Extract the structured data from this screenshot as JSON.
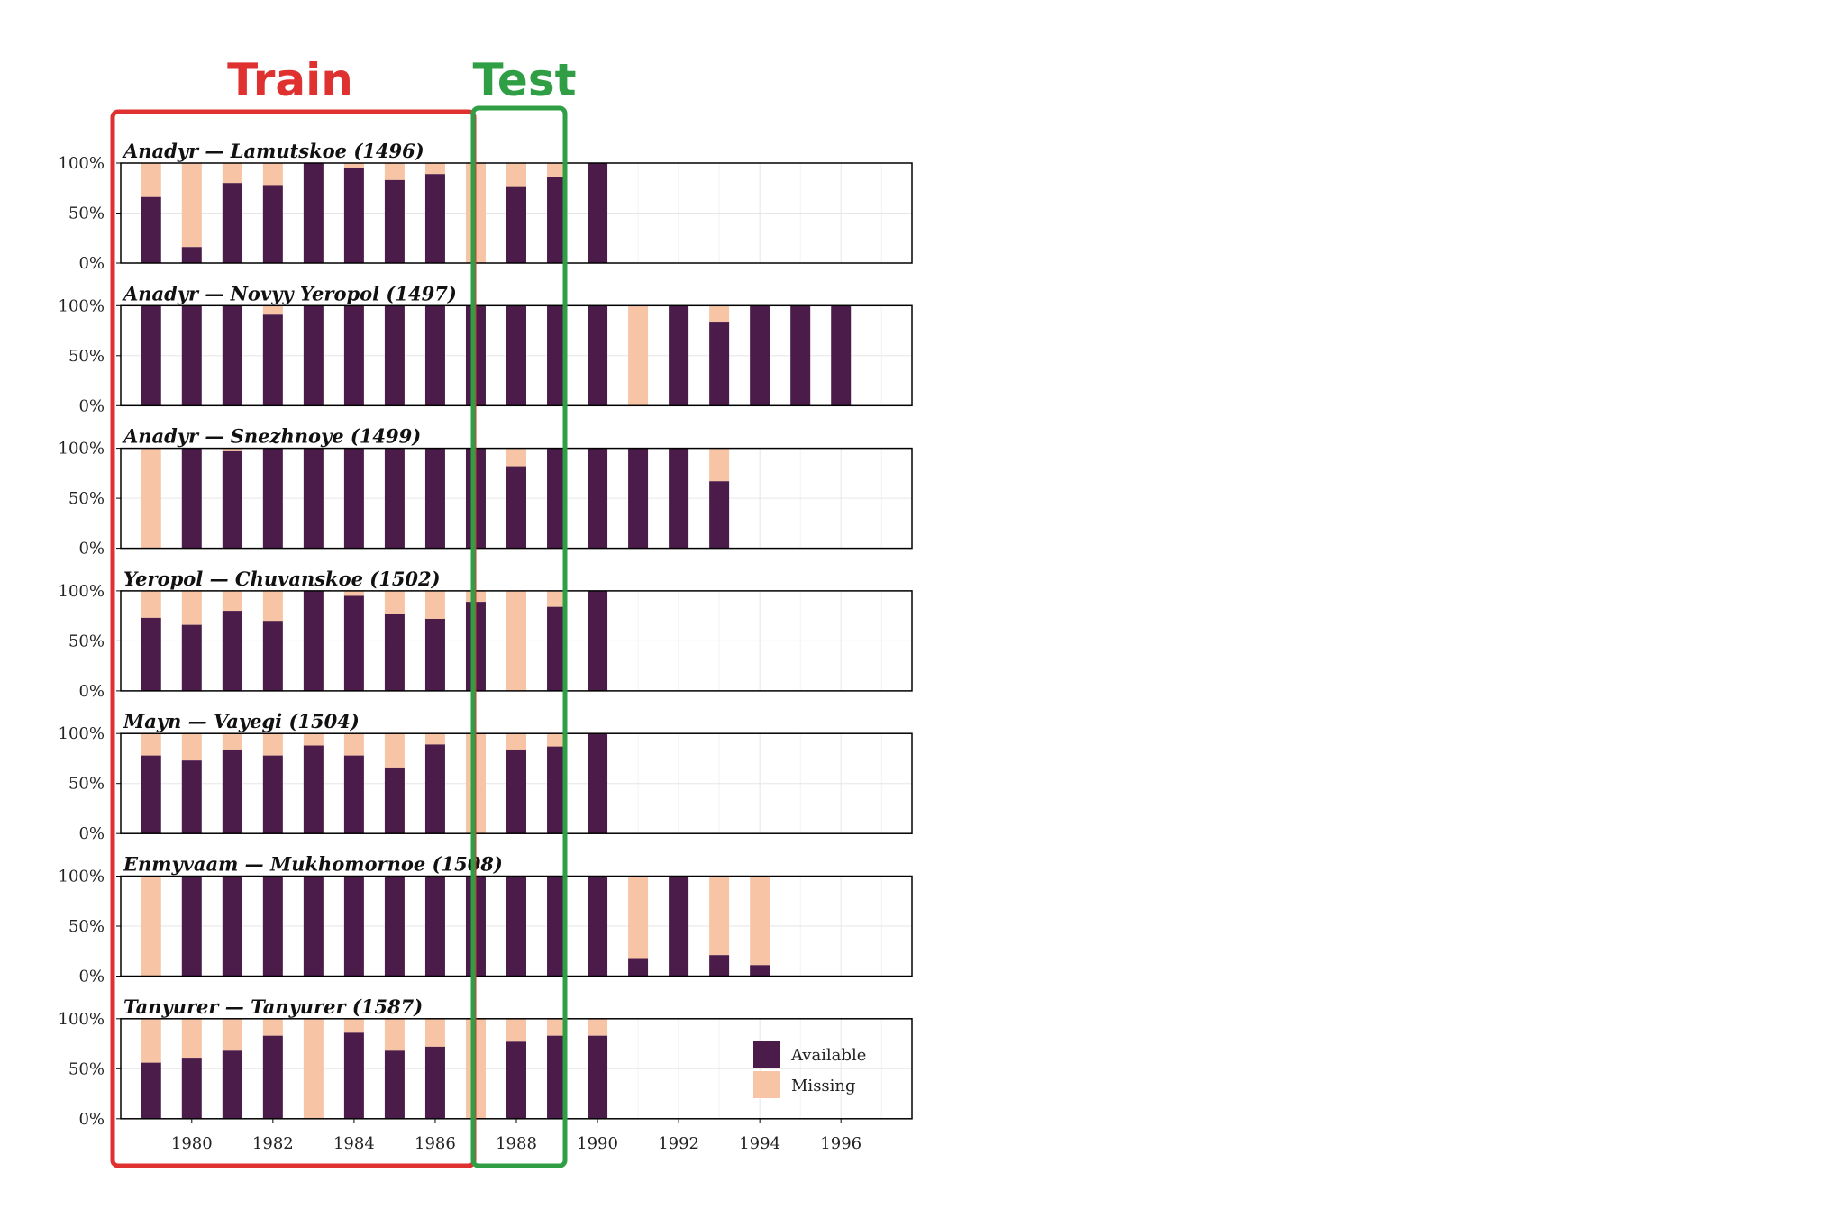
{
  "annotations": {
    "train_label": "Train",
    "test_label": "Test"
  },
  "colors": {
    "available": "#4b1c4a",
    "missing": "#f7c5a5",
    "train": "#e03131",
    "test": "#2f9e44",
    "grid": "#e6e6e6",
    "frame": "#000000"
  },
  "legend": {
    "available": "Available",
    "missing": "Missing",
    "position": "bottom-right of last panel"
  },
  "chart_data": {
    "type": "bar",
    "stacked": true,
    "grid": true,
    "x_ticks": [
      "1980",
      "1982",
      "1984",
      "1986",
      "1988",
      "1990",
      "1992",
      "1994",
      "1996"
    ],
    "x_tick_values": [
      1980,
      1982,
      1984,
      1986,
      1988,
      1990,
      1992,
      1994,
      1996
    ],
    "xlim": [
      1978,
      1997
    ],
    "y_ticks": [
      "0%",
      "50%",
      "100%"
    ],
    "ylim": [
      0,
      100
    ],
    "unit": "%",
    "panels": [
      {
        "title": "Anadyr — Lamutskoe (1496)",
        "years": [
          1979,
          1980,
          1981,
          1982,
          1983,
          1984,
          1985,
          1986,
          1987,
          1988,
          1989,
          1990
        ],
        "available": [
          66,
          16,
          80,
          78,
          100,
          95,
          83,
          89,
          0,
          76,
          86,
          100
        ]
      },
      {
        "title": "Anadyr — Novyy Yeropol (1497)",
        "years": [
          1979,
          1980,
          1981,
          1982,
          1983,
          1984,
          1985,
          1986,
          1987,
          1988,
          1989,
          1990,
          1991,
          1992,
          1993,
          1994,
          1995,
          1996
        ],
        "available": [
          100,
          100,
          100,
          91,
          100,
          100,
          100,
          100,
          100,
          100,
          100,
          100,
          0,
          100,
          84,
          100,
          100,
          100
        ]
      },
      {
        "title": "Anadyr — Snezhnoye (1499)",
        "years": [
          1979,
          1980,
          1981,
          1982,
          1983,
          1984,
          1985,
          1986,
          1987,
          1988,
          1989,
          1990,
          1991,
          1992,
          1993
        ],
        "available": [
          0,
          100,
          97,
          100,
          100,
          100,
          100,
          100,
          100,
          82,
          100,
          100,
          100,
          100,
          67
        ]
      },
      {
        "title": "Yeropol — Chuvanskoe (1502)",
        "years": [
          1979,
          1980,
          1981,
          1982,
          1983,
          1984,
          1985,
          1986,
          1987,
          1988,
          1989,
          1990
        ],
        "available": [
          73,
          66,
          80,
          70,
          100,
          95,
          77,
          72,
          89,
          0,
          84,
          100
        ]
      },
      {
        "title": "Mayn — Vayegi (1504)",
        "years": [
          1979,
          1980,
          1981,
          1982,
          1983,
          1984,
          1985,
          1986,
          1987,
          1988,
          1989,
          1990
        ],
        "available": [
          78,
          73,
          84,
          78,
          88,
          78,
          66,
          89,
          0,
          84,
          87,
          100
        ]
      },
      {
        "title": "Enmyvaam — Mukhomornoe (1508)",
        "years": [
          1979,
          1980,
          1981,
          1982,
          1983,
          1984,
          1985,
          1986,
          1987,
          1988,
          1989,
          1990,
          1991,
          1992,
          1993,
          1994
        ],
        "available": [
          0,
          100,
          100,
          100,
          100,
          100,
          100,
          100,
          100,
          100,
          100,
          100,
          18,
          100,
          21,
          11
        ]
      },
      {
        "title": "Tanyurer — Tanyurer (1587)",
        "years": [
          1979,
          1980,
          1981,
          1982,
          1983,
          1984,
          1985,
          1986,
          1987,
          1988,
          1989,
          1990
        ],
        "available": [
          56,
          61,
          68,
          83,
          0,
          86,
          68,
          72,
          0,
          77,
          83,
          83
        ]
      }
    ]
  }
}
